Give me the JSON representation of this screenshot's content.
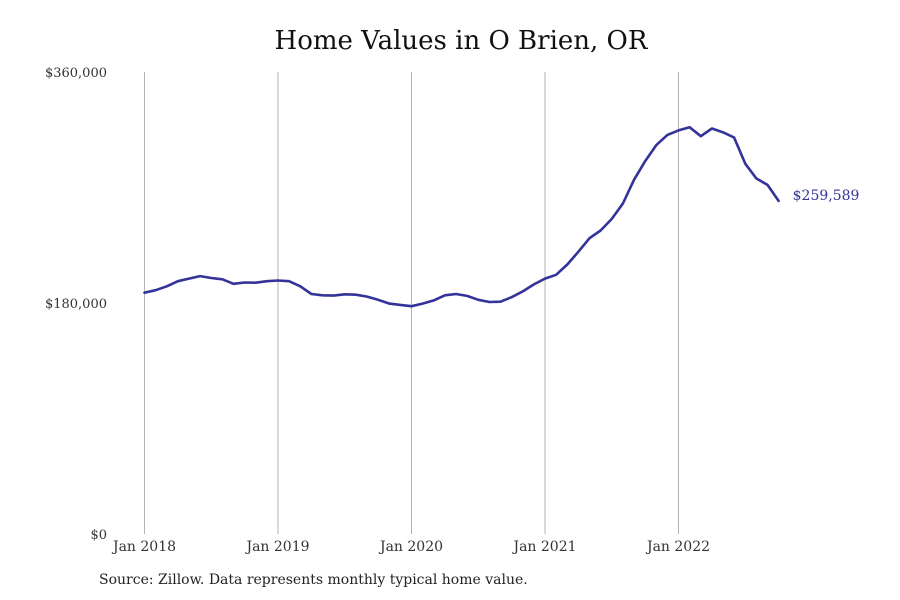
{
  "title": "Home Values in O Brien, OR",
  "source": "Source: Zillow. Data represents monthly typical home value.",
  "chart_data": {
    "type": "line",
    "title": "Home Values in O Brien, OR",
    "xlabel": "",
    "ylabel": "",
    "ylim": [
      0,
      360000
    ],
    "yticks": [
      {
        "value": 0,
        "label": "$0"
      },
      {
        "value": 180000,
        "label": "$180,000"
      },
      {
        "value": 360000,
        "label": "$360,000"
      }
    ],
    "xticks": [
      "Jan 2018",
      "Jan 2019",
      "Jan 2020",
      "Jan 2021",
      "Jan 2022"
    ],
    "grid": {
      "vertical": true,
      "horizontal": false
    },
    "line_color": "#333399",
    "end_label": "$259,589",
    "series": [
      {
        "x": [
          "2018-01",
          "2018-02",
          "2018-03",
          "2018-04",
          "2018-05",
          "2018-06",
          "2018-07",
          "2018-08",
          "2018-09",
          "2018-10",
          "2018-11",
          "2018-12",
          "2019-01",
          "2019-02",
          "2019-03",
          "2019-04",
          "2019-05",
          "2019-06",
          "2019-07",
          "2019-08",
          "2019-09",
          "2019-10",
          "2019-11",
          "2019-12",
          "2020-01",
          "2020-02",
          "2020-03",
          "2020-04",
          "2020-05",
          "2020-06",
          "2020-07",
          "2020-08",
          "2020-09",
          "2020-10",
          "2020-11",
          "2020-12",
          "2021-01",
          "2021-02",
          "2021-03",
          "2021-04",
          "2021-05",
          "2021-06",
          "2021-07",
          "2021-08",
          "2021-09",
          "2021-10",
          "2021-11",
          "2021-12",
          "2022-01",
          "2022-02",
          "2022-03",
          "2022-04",
          "2022-05",
          "2022-06",
          "2022-07",
          "2022-08",
          "2022-09",
          "2022-10"
        ],
        "values": [
          188000,
          190000,
          193000,
          197000,
          199000,
          201000,
          199500,
          198500,
          195000,
          196000,
          195800,
          197000,
          197500,
          197000,
          193000,
          187000,
          186000,
          185800,
          186800,
          186500,
          185000,
          182500,
          179500,
          178500,
          177500,
          179500,
          182000,
          186000,
          187000,
          185500,
          182500,
          180800,
          181000,
          184500,
          189000,
          194500,
          199000,
          202000,
          210000,
          220000,
          230500,
          236500,
          245500,
          257500,
          276000,
          290500,
          303000,
          311000,
          314500,
          317000,
          310000,
          316000,
          313000,
          309000,
          288500,
          277000,
          272000,
          259589
        ]
      }
    ]
  }
}
